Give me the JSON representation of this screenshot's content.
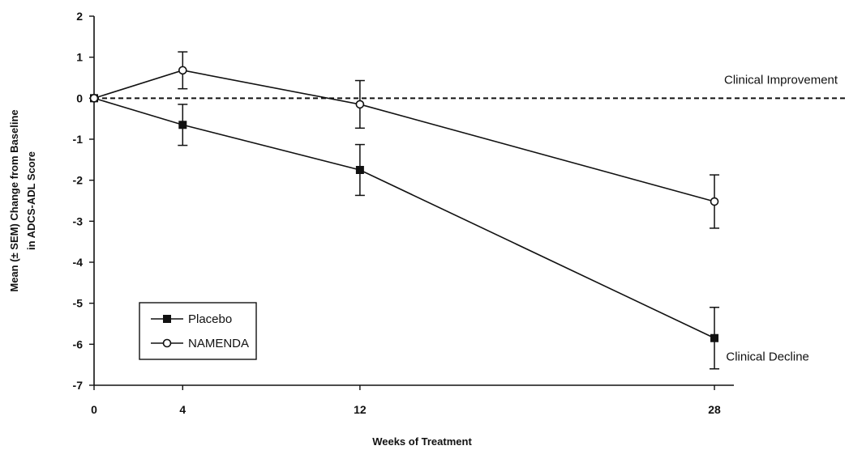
{
  "chart_data": {
    "type": "line",
    "xlabel": "Weeks of Treatment",
    "ylabel": [
      "Mean (± SEM) Change from Baseline",
      "in ADCS-ADL Score"
    ],
    "x": [
      0,
      4,
      12,
      28
    ],
    "xlim": [
      0,
      34
    ],
    "ylim": [
      -7,
      2
    ],
    "yticks": [
      2,
      1,
      0,
      -1,
      -2,
      -3,
      -4,
      -5,
      -6,
      -7
    ],
    "grid": false,
    "legend_position": "bottom-left",
    "reference_line": {
      "y": 0,
      "style": "dashed"
    },
    "series": [
      {
        "name": "Placebo",
        "marker": "filled-square",
        "color": "#111111",
        "values": [
          0,
          -0.65,
          -1.75,
          -5.85
        ],
        "errors": [
          0,
          0.5,
          0.62,
          0.75
        ]
      },
      {
        "name": "NAMENDA",
        "marker": "open-circle",
        "color": "#111111",
        "values": [
          0,
          0.68,
          -0.15,
          -2.52
        ],
        "errors": [
          0,
          0.45,
          0.58,
          0.65
        ]
      }
    ],
    "annotations": [
      {
        "text": "Clinical Improvement",
        "x": 31,
        "y": 0.45
      },
      {
        "text": "Clinical Decline",
        "x": 30.4,
        "y": -6.3
      }
    ]
  }
}
